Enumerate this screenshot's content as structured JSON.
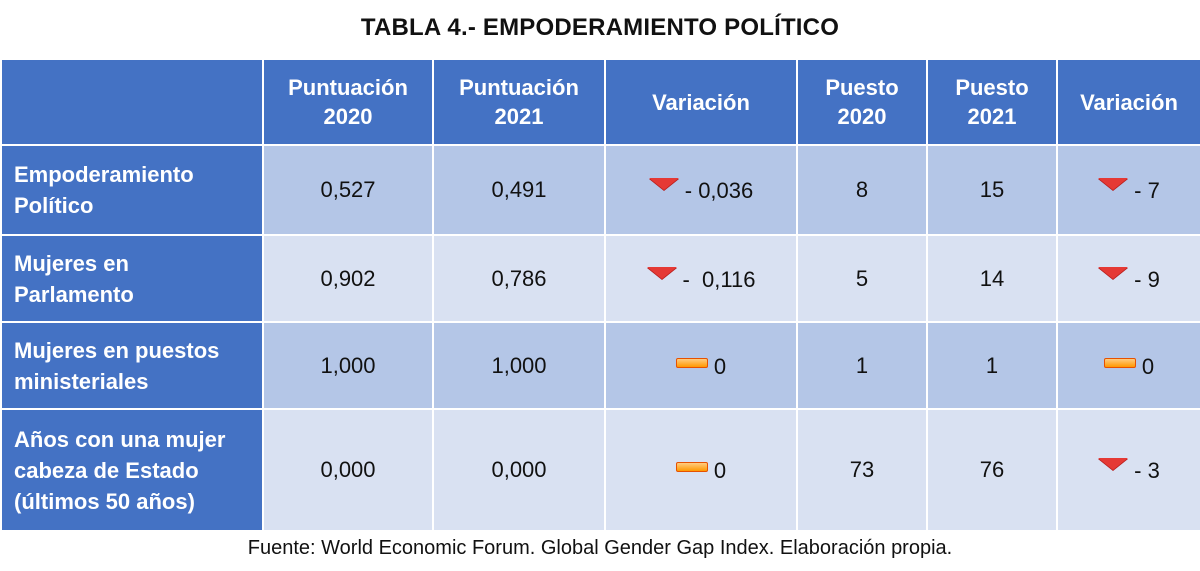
{
  "title": "TABLA 4.- EMPODERAMIENTO POLÍTICO",
  "columns": [
    "",
    "Puntuación 2020",
    "Puntuación 2021",
    "Variación",
    "Puesto 2020",
    "Puesto 2021",
    "Variación"
  ],
  "column_lines": [
    [],
    [
      "Puntuación",
      "2020"
    ],
    [
      "Puntuación",
      "2021"
    ],
    [
      "Variación"
    ],
    [
      "Puesto",
      "2020"
    ],
    [
      "Puesto",
      "2021"
    ],
    [
      "Variación"
    ]
  ],
  "rows": [
    {
      "label_lines": [
        "Empoderamiento",
        "Político"
      ],
      "p2020": "0,527",
      "p2021": "0,491",
      "var_score": {
        "icon": "down-triangle-icon",
        "text": "- 0,036"
      },
      "r2020": "8",
      "r2021": "15",
      "var_rank": {
        "icon": "down-triangle-icon",
        "text": "- 7"
      }
    },
    {
      "label_lines": [
        "Mujeres en",
        "Parlamento"
      ],
      "p2020": "0,902",
      "p2021": "0,786",
      "var_score": {
        "icon": "down-triangle-icon",
        "text": "-  0,116"
      },
      "r2020": "5",
      "r2021": "14",
      "var_rank": {
        "icon": "down-triangle-icon",
        "text": "- 9"
      }
    },
    {
      "label_lines": [
        "Mujeres en puestos",
        "ministeriales"
      ],
      "p2020": "1,000",
      "p2021": "1,000",
      "var_score": {
        "icon": "dash-icon",
        "text": "0"
      },
      "r2020": "1",
      "r2021": "1",
      "var_rank": {
        "icon": "dash-icon",
        "text": "0"
      }
    },
    {
      "label_lines": [
        "Años con una mujer",
        "cabeza de Estado",
        "(últimos 50 años)"
      ],
      "p2020": "0,000",
      "p2021": "0,000",
      "var_score": {
        "icon": "dash-icon",
        "text": "0"
      },
      "r2020": "73",
      "r2021": "76",
      "var_rank": {
        "icon": "down-triangle-icon",
        "text": "- 3"
      }
    }
  ],
  "footer": "Fuente: World Economic Forum. Global Gender Gap Index. Elaboración propia.",
  "colors": {
    "header_blue": "#4472c4",
    "row_dark": "#b4c6e7",
    "row_light": "#d9e1f2",
    "down_red": "#e53935",
    "dash_orange": "#ff9800"
  }
}
